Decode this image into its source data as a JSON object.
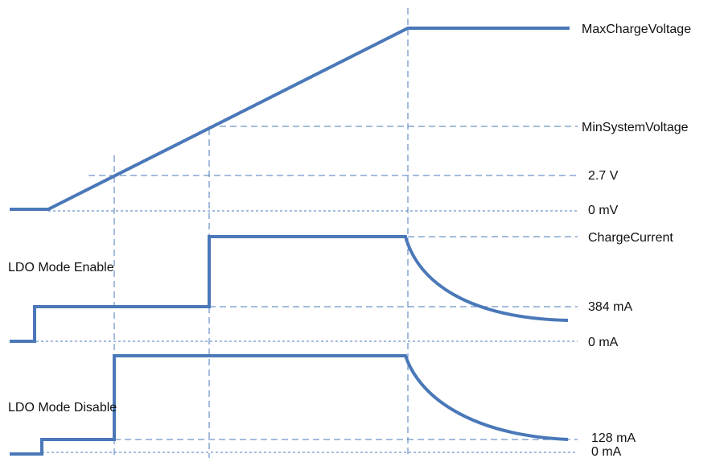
{
  "colors": {
    "waveform": "#4a78b8",
    "guide": "#4a78b8",
    "text": "#111111"
  },
  "labels": {
    "max_charge_voltage": "MaxChargeVoltage",
    "min_system_voltage": "MinSystemVoltage",
    "v_2_7": "2.7 V",
    "v_0": "0 mV",
    "charge_current": "ChargeCurrent",
    "i_384": "384 mA",
    "i_0_enable": "0 mA",
    "i_128": "128 mA",
    "i_0_disable": "0 mA"
  },
  "sections": {
    "ldo_enable": "LDO Mode Enable",
    "ldo_disable": "LDO Mode Disable"
  }
}
